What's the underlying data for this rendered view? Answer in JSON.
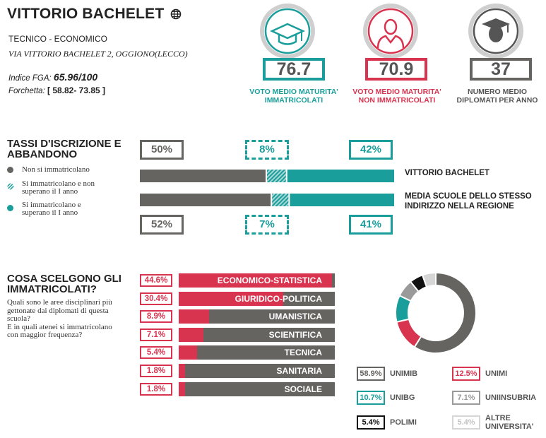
{
  "school": {
    "name": "VITTORIO BACHELET",
    "type": "TECNICO - ECONOMICO",
    "address": "VIA VITTORIO BACHELET 2, OGGIONO(LECCO)",
    "fga_label": "Indice FGA:",
    "fga_value": "65.96/100",
    "fork_label": "Forchetta:",
    "fork_value": "[ 58.82- 73.85 ]"
  },
  "metrics": [
    {
      "value": "76.7",
      "label": "VOTO MEDIO MATURITA' IMMATRICOLATI",
      "color": "#1a9e9b",
      "icon": "graduation-cap-icon"
    },
    {
      "value": "70.9",
      "label": "VOTO MEDIO MATURITA' NON IMMATRICOLATI",
      "color": "#d9344f",
      "icon": "person-icon"
    },
    {
      "value": "37",
      "label": "NUMERO MEDIO DIPLOMATI PER ANNO",
      "color": "#666461",
      "icon": "graduate-avatar-icon"
    }
  ],
  "enrollment": {
    "title_line1": "TASSI D'ISCRIZIONE E",
    "title_line2": "ABBANDONO",
    "legend": [
      {
        "label_lines": [
          "Non si immatricolano"
        ],
        "color": "#666461",
        "style": "solid"
      },
      {
        "label_lines": [
          "Si immatricolano e non",
          "superano il I anno"
        ],
        "color": "#1a9e9b",
        "style": "hatched"
      },
      {
        "label_lines": [
          "Si immatricolano e",
          "superano il I anno"
        ],
        "color": "#1a9e9b",
        "style": "solid"
      }
    ],
    "colors": {
      "grey": "#666461",
      "teal": "#1a9e9b"
    }
  },
  "chart_data": [
    {
      "type": "bar",
      "stacked": true,
      "orientation": "horizontal",
      "categories": [
        "VITTORIO BACHELET",
        "MEDIA SCUOLE DELLO STESSO INDIRIZZO NELLA REGIONE"
      ],
      "series": [
        {
          "name": "Non si immatricolano",
          "values": [
            50,
            52
          ],
          "labels": [
            "50%",
            "52%"
          ]
        },
        {
          "name": "Si immatricolano e non superano il I anno",
          "values": [
            8,
            7
          ],
          "labels": [
            "8%",
            "7%"
          ]
        },
        {
          "name": "Si immatricolano e superano il I anno",
          "values": [
            42,
            41
          ],
          "labels": [
            "42%",
            "41%"
          ]
        }
      ]
    },
    {
      "type": "bar",
      "orientation": "horizontal",
      "title_line1": "COSA SCELGONO GLI",
      "title_line2": "IMMATRICOLATI?",
      "description_lines": [
        "Quali sono le aree disciplinari più",
        "gettonate dai diplomati di questa",
        "scuola?",
        "E in quali atenei si immatricolano",
        "con maggior frequenza?"
      ],
      "categories": [
        "ECONOMICO-STATISTICA",
        "GIURIDICO-POLITICA",
        "UMANISTICA",
        "SCIENTIFICA",
        "TECNICA",
        "SANITARIA",
        "SOCIALE"
      ],
      "values": [
        44.6,
        30.4,
        8.9,
        7.1,
        5.4,
        1.8,
        1.8
      ],
      "labels": [
        "44.6%",
        "30.4%",
        "8.9%",
        "7.1%",
        "5.4%",
        "1.8%",
        "1.8%"
      ],
      "xlim": [
        0,
        100
      ]
    },
    {
      "type": "pie",
      "donut": true,
      "slices": [
        {
          "name": "UNIMIB",
          "value": 58.9,
          "label": "58.9%",
          "color": "#666461"
        },
        {
          "name": "UNIMI",
          "value": 12.5,
          "label": "12.5%",
          "color": "#d9344f"
        },
        {
          "name": "UNIBG",
          "value": 10.7,
          "label": "10.7%",
          "color": "#1a9e9b"
        },
        {
          "name": "UNIINSUBRIA",
          "value": 7.1,
          "label": "7.1%",
          "color": "#9a9a9a"
        },
        {
          "name": "POLIMI",
          "value": 5.4,
          "label": "5.4%",
          "color": "#111111"
        },
        {
          "name": "ALTRE UNIVERSITA'",
          "value": 5.4,
          "label": "5.4%",
          "color": "#d6d6d6"
        }
      ]
    }
  ]
}
